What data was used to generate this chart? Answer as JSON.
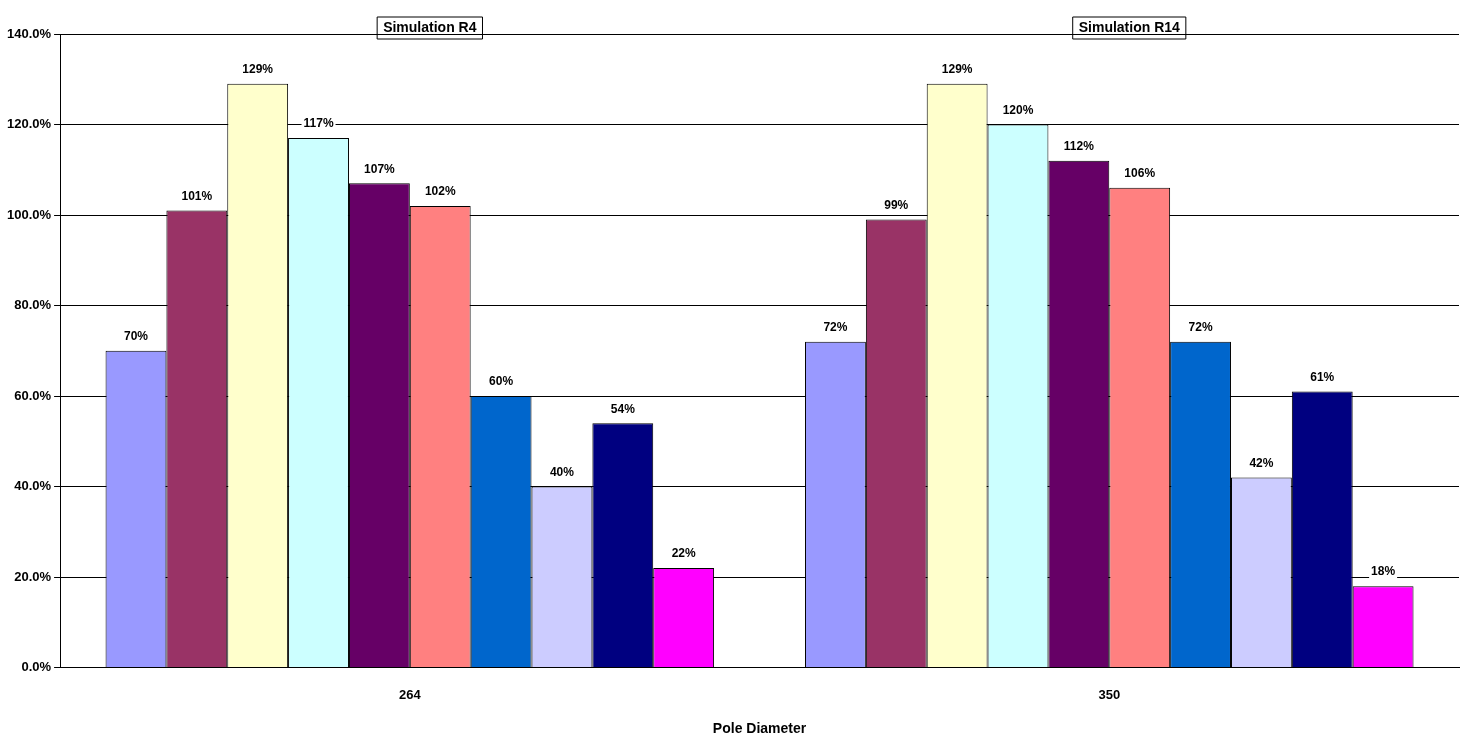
{
  "chart_data": {
    "type": "bar",
    "xlabel": "Pole Diameter",
    "categories": [
      "264",
      "350"
    ],
    "annotations": [
      "Simulation R4",
      "Simulation R14"
    ],
    "series": [
      {
        "color": "#9999ff",
        "values": [
          70,
          72
        ],
        "value_labels": [
          "70%",
          "72%"
        ]
      },
      {
        "color": "#993366",
        "values": [
          101,
          99
        ],
        "value_labels": [
          "101%",
          "99%"
        ]
      },
      {
        "color": "#ffffcc",
        "values": [
          129,
          129
        ],
        "value_labels": [
          "129%",
          "129%"
        ]
      },
      {
        "color": "#ccffff",
        "values": [
          117,
          120
        ],
        "value_labels": [
          "117%",
          "120%"
        ]
      },
      {
        "color": "#660066",
        "values": [
          107,
          112
        ],
        "value_labels": [
          "107%",
          "112%"
        ]
      },
      {
        "color": "#ff8080",
        "values": [
          102,
          106
        ],
        "value_labels": [
          "102%",
          "106%"
        ]
      },
      {
        "color": "#0066cc",
        "values": [
          60,
          72
        ],
        "value_labels": [
          "60%",
          "72%"
        ]
      },
      {
        "color": "#ccccff",
        "values": [
          40,
          42
        ],
        "value_labels": [
          "40%",
          "42%"
        ]
      },
      {
        "color": "#000080",
        "values": [
          54,
          61
        ],
        "value_labels": [
          "54%",
          "61%"
        ]
      },
      {
        "color": "#ff00ff",
        "values": [
          22,
          18
        ],
        "value_labels": [
          "22%",
          "18%"
        ]
      }
    ],
    "ylim": [
      0,
      140
    ],
    "yticks": [
      {
        "value": 0,
        "label": "0.0%"
      },
      {
        "value": 20,
        "label": "20.0%"
      },
      {
        "value": 40,
        "label": "40.0%"
      },
      {
        "value": 60,
        "label": "60.0%"
      },
      {
        "value": 80,
        "label": "80.0%"
      },
      {
        "value": 100,
        "label": "100.0%"
      },
      {
        "value": 120,
        "label": "120.0%"
      },
      {
        "value": 140,
        "label": "140.0%"
      }
    ],
    "grid": "y",
    "legend": false
  }
}
